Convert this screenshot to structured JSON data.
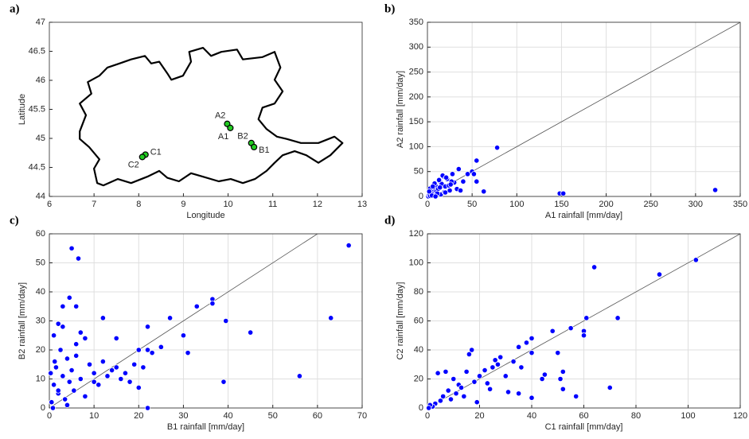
{
  "chart_data": [
    {
      "type": "map",
      "panel_label": "a)",
      "xlabel": "Longitude",
      "ylabel": "Latitude",
      "xlim": [
        6,
        13
      ],
      "ylim": [
        44,
        47
      ],
      "xticks": [
        6,
        7,
        8,
        9,
        10,
        11,
        12,
        13
      ],
      "yticks": [
        44,
        44.5,
        45,
        45.5,
        46,
        46.5,
        47
      ],
      "grid": false,
      "outline": {
        "color": "#000000",
        "x": [
          6.68,
          6.82,
          6.68,
          6.94,
          6.86,
          7.12,
          7.3,
          7.57,
          7.83,
          8.14,
          8.28,
          8.46,
          8.64,
          8.73,
          8.99,
          9.17,
          9.13,
          9.44,
          9.62,
          9.85,
          10.2,
          10.33,
          10.77,
          11.04,
          11.17,
          11.04,
          11.22,
          11.04,
          10.77,
          10.68,
          10.86,
          11.09,
          11.31,
          11.63,
          12.02,
          12.38,
          12.56,
          12.29,
          12.02,
          11.75,
          11.49,
          11.22,
          11.04,
          10.86,
          10.6,
          10.33,
          10.06,
          9.79,
          9.44,
          9.17,
          8.9,
          8.64,
          8.46,
          8.19,
          7.83,
          7.53,
          7.21,
          7.07,
          7.0,
          7.12,
          6.89,
          6.68
        ],
        "y": [
          45.12,
          45.4,
          45.6,
          45.77,
          45.97,
          46.08,
          46.22,
          46.29,
          46.36,
          46.42,
          46.29,
          46.32,
          46.12,
          46.01,
          46.08,
          46.32,
          46.49,
          46.56,
          46.42,
          46.49,
          46.53,
          46.36,
          46.4,
          46.49,
          46.22,
          46.01,
          45.81,
          45.6,
          45.53,
          45.33,
          45.16,
          45.03,
          44.99,
          44.92,
          44.92,
          45.03,
          44.92,
          44.71,
          44.58,
          44.71,
          44.78,
          44.71,
          44.58,
          44.44,
          44.3,
          44.23,
          44.3,
          44.26,
          44.34,
          44.4,
          44.26,
          44.32,
          44.44,
          44.34,
          44.23,
          44.3,
          44.19,
          44.23,
          44.48,
          44.64,
          44.85,
          44.99
        ]
      },
      "points": {
        "color": "#22cc22",
        "labels": [
          "A2",
          "A1",
          "B2",
          "B1",
          "C1",
          "C2"
        ],
        "x": [
          9.98,
          10.05,
          10.52,
          10.58,
          8.15,
          8.08
        ],
        "y": [
          45.25,
          45.18,
          44.92,
          44.85,
          44.72,
          44.68
        ]
      }
    },
    {
      "type": "scatter",
      "panel_label": "b)",
      "xlabel": "A1 rainfall [mm/day]",
      "ylabel": "A2 rainfall [mm/day]",
      "color": "#0000ff",
      "xlim": [
        0,
        350
      ],
      "ylim": [
        0,
        350
      ],
      "xticks": [
        0,
        50,
        100,
        150,
        200,
        250,
        300,
        350
      ],
      "yticks": [
        0,
        50,
        100,
        150,
        200,
        250,
        300,
        350
      ],
      "grid": true,
      "x": [
        1,
        2,
        3,
        4,
        5,
        6,
        7,
        8,
        9,
        10,
        12,
        14,
        15,
        16,
        18,
        20,
        22,
        25,
        28,
        30,
        3,
        5,
        8,
        11,
        13,
        17,
        19,
        21,
        24,
        27,
        33,
        35,
        37,
        40,
        45,
        50,
        52,
        55,
        55,
        63,
        78,
        148,
        152,
        322,
        2,
        6,
        9,
        14,
        20,
        26
      ],
      "values": [
        0,
        3,
        1,
        8,
        12,
        5,
        18,
        2,
        22,
        10,
        15,
        30,
        4,
        25,
        40,
        20,
        35,
        12,
        45,
        28,
        16,
        2,
        26,
        6,
        33,
        42,
        9,
        38,
        22,
        30,
        15,
        55,
        12,
        30,
        45,
        50,
        45,
        72,
        30,
        10,
        98,
        6,
        6,
        13,
        10,
        20,
        0,
        18,
        8,
        24
      ]
    },
    {
      "type": "scatter",
      "panel_label": "c)",
      "xlabel": "B1 rainfall [mm/day]",
      "ylabel": "B2 rainfall [mm/day]",
      "color": "#0000ff",
      "xlim": [
        0,
        70
      ],
      "ylim": [
        0,
        60
      ],
      "xticks": [
        0,
        10,
        20,
        30,
        40,
        50,
        60,
        70
      ],
      "yticks": [
        0,
        10,
        20,
        30,
        40,
        50,
        60
      ],
      "grid": true,
      "x": [
        0.5,
        1,
        1.5,
        2,
        2.5,
        3,
        3.5,
        4,
        4.5,
        5,
        5.5,
        6,
        7,
        8,
        9,
        10,
        11,
        12,
        13,
        14,
        15,
        16,
        17,
        18,
        19,
        20,
        21,
        22,
        23,
        25,
        1,
        2,
        3,
        4,
        6,
        8,
        10,
        0.3,
        0.8,
        1.2,
        67,
        63,
        56,
        45,
        39,
        39.5,
        36.5,
        36.5,
        33,
        5,
        6.5,
        4.5,
        6,
        3,
        12,
        27,
        22,
        20,
        2,
        15,
        31,
        30,
        22,
        7
      ],
      "values": [
        2,
        8,
        14,
        5,
        20,
        11,
        3,
        17,
        9,
        13,
        6,
        22,
        10,
        4,
        15,
        12,
        8,
        16,
        11,
        13,
        14,
        10,
        12,
        9,
        15,
        7,
        14,
        20,
        19,
        21,
        25,
        6,
        28,
        1,
        18,
        24,
        9,
        12,
        0,
        16,
        56,
        31,
        11,
        26,
        9,
        30,
        37.5,
        36,
        35,
        55,
        51.5,
        38,
        35,
        35,
        31,
        31,
        28,
        20,
        29,
        24,
        19,
        25,
        0,
        26
      ]
    },
    {
      "type": "scatter",
      "panel_label": "d)",
      "xlabel": "C1 rainfall [mm/day]",
      "ylabel": "C2 rainfall [mm/day]",
      "color": "#0000ff",
      "xlim": [
        0,
        120
      ],
      "ylim": [
        0,
        120
      ],
      "xticks": [
        0,
        20,
        40,
        60,
        80,
        100,
        120
      ],
      "yticks": [
        0,
        20,
        40,
        60,
        80,
        100,
        120
      ],
      "grid": true,
      "x": [
        103,
        89,
        64,
        73,
        70,
        61,
        60,
        60,
        55,
        52,
        51,
        52,
        50,
        48,
        45,
        40,
        40,
        40,
        38,
        35,
        35,
        33,
        28,
        25,
        20,
        17,
        16,
        15,
        12,
        10,
        8,
        6,
        5,
        3,
        2,
        4,
        7,
        1,
        9,
        11,
        13,
        18,
        22,
        24,
        27,
        30,
        14,
        19,
        23,
        26,
        31,
        36,
        44,
        57,
        0.5
      ],
      "values": [
        102,
        92,
        97,
        62,
        14,
        62,
        53,
        50,
        55,
        25,
        20,
        13,
        38,
        53,
        23,
        48,
        38,
        7,
        45,
        42,
        10,
        32,
        35,
        28,
        22,
        40,
        37,
        25,
        16,
        20,
        12,
        8,
        5,
        3,
        1,
        24,
        25,
        2,
        6,
        10,
        14,
        18,
        26,
        13,
        30,
        22,
        8,
        4,
        17,
        33,
        11,
        28,
        20,
        8,
        0
      ]
    }
  ]
}
